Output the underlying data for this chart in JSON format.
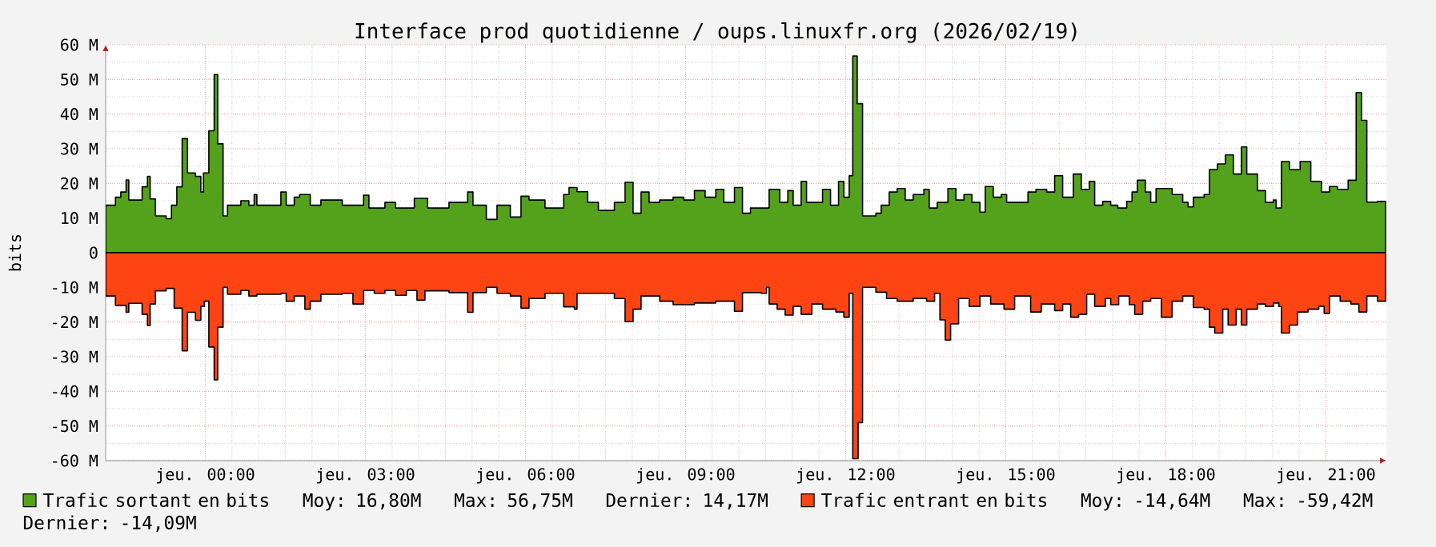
{
  "chart_data": {
    "type": "area",
    "title": "Interface prod quotidienne / oups.linuxfr.org (2026/02/19)",
    "ylabel": "bits",
    "xlim": [
      "2026-02-18T22:08",
      "2026-02-19T22:08"
    ],
    "ylim": [
      -60,
      60
    ],
    "xticks": [
      {
        "value": "2026-02-19T00:00",
        "label": "jeu. 00:00"
      },
      {
        "value": "2026-02-19T03:00",
        "label": "jeu. 03:00"
      },
      {
        "value": "2026-02-19T06:00",
        "label": "jeu. 06:00"
      },
      {
        "value": "2026-02-19T09:00",
        "label": "jeu. 09:00"
      },
      {
        "value": "2026-02-19T12:00",
        "label": "jeu. 12:00"
      },
      {
        "value": "2026-02-19T15:00",
        "label": "jeu. 15:00"
      },
      {
        "value": "2026-02-19T18:00",
        "label": "jeu. 18:00"
      },
      {
        "value": "2026-02-19T21:00",
        "label": "jeu. 21:00"
      }
    ],
    "yticks": [
      {
        "value": 60,
        "label": "60 M"
      },
      {
        "value": 50,
        "label": "50 M"
      },
      {
        "value": 40,
        "label": "40 M"
      },
      {
        "value": 30,
        "label": "30 M"
      },
      {
        "value": 20,
        "label": "20 M"
      },
      {
        "value": 10,
        "label": "10 M"
      },
      {
        "value": 0,
        "label": "0"
      },
      {
        "value": -10,
        "label": "-10 M"
      },
      {
        "value": -20,
        "label": "-20 M"
      },
      {
        "value": -30,
        "label": "-30 M"
      },
      {
        "value": -40,
        "label": "-40 M"
      },
      {
        "value": -50,
        "label": "-50 M"
      },
      {
        "value": -60,
        "label": "-60 M"
      }
    ],
    "grid": true,
    "legend": "bottom",
    "annotations": [
      "Moy: 16,80M",
      "Max: 56,75M",
      "Dernier: 14,17M",
      "Moy: -14,64M",
      "Max: -59,42M",
      "Dernier: -14,09M"
    ],
    "series": [
      {
        "name": "Trafic sortant en bits",
        "color": "#54a11c",
        "x": [
          "2026-02-18T22:08",
          "2026-02-18T22:19",
          "2026-02-18T22:25",
          "2026-02-18T22:31",
          "2026-02-18T22:34",
          "2026-02-18T22:49",
          "2026-02-18T22:55",
          "2026-02-18T22:58",
          "2026-02-18T23:04",
          "2026-02-18T23:16",
          "2026-02-18T23:22",
          "2026-02-18T23:28",
          "2026-02-18T23:34",
          "2026-02-18T23:40",
          "2026-02-18T23:49",
          "2026-02-18T23:55",
          "2026-02-18T23:58",
          "2026-02-19T00:04",
          "2026-02-19T00:10",
          "2026-02-19T00:14",
          "2026-02-19T00:20",
          "2026-02-19T00:25",
          "2026-02-19T00:40",
          "2026-02-19T00:49",
          "2026-02-19T00:55",
          "2026-02-19T00:58",
          "2026-02-19T01:25",
          "2026-02-19T01:31",
          "2026-02-19T01:40",
          "2026-02-19T01:46",
          "2026-02-19T01:58",
          "2026-02-19T02:10",
          "2026-02-19T02:22",
          "2026-02-19T02:34",
          "2026-02-19T02:58",
          "2026-02-19T03:04",
          "2026-02-19T03:22",
          "2026-02-19T03:34",
          "2026-02-19T03:55",
          "2026-02-19T04:10",
          "2026-02-19T04:34",
          "2026-02-19T04:55",
          "2026-02-19T05:01",
          "2026-02-19T05:16",
          "2026-02-19T05:28",
          "2026-02-19T05:43",
          "2026-02-19T05:55",
          "2026-02-19T06:04",
          "2026-02-19T06:22",
          "2026-02-19T06:43",
          "2026-02-19T06:49",
          "2026-02-19T06:58",
          "2026-02-19T07:10",
          "2026-02-19T07:22",
          "2026-02-19T07:40",
          "2026-02-19T07:52",
          "2026-02-19T08:01",
          "2026-02-19T08:10",
          "2026-02-19T08:19",
          "2026-02-19T08:31",
          "2026-02-19T08:46",
          "2026-02-19T08:58",
          "2026-02-19T09:10",
          "2026-02-19T09:22",
          "2026-02-19T09:34",
          "2026-02-19T09:43",
          "2026-02-19T09:55",
          "2026-02-19T10:04",
          "2026-02-19T10:13",
          "2026-02-19T10:34",
          "2026-02-19T10:46",
          "2026-02-19T10:55",
          "2026-02-19T11:01",
          "2026-02-19T11:10",
          "2026-02-19T11:16",
          "2026-02-19T11:34",
          "2026-02-19T11:43",
          "2026-02-19T11:52",
          "2026-02-19T11:58",
          "2026-02-19T12:04",
          "2026-02-19T12:08",
          "2026-02-19T12:13",
          "2026-02-19T12:19",
          "2026-02-19T12:34",
          "2026-02-19T12:40",
          "2026-02-19T12:49",
          "2026-02-19T12:58",
          "2026-02-19T13:07",
          "2026-02-19T13:16",
          "2026-02-19T13:28",
          "2026-02-19T13:34",
          "2026-02-19T13:43",
          "2026-02-19T13:55",
          "2026-02-19T14:04",
          "2026-02-19T14:13",
          "2026-02-19T14:22",
          "2026-02-19T14:31",
          "2026-02-19T14:37",
          "2026-02-19T14:46",
          "2026-02-19T14:55",
          "2026-02-19T15:01",
          "2026-02-19T15:13",
          "2026-02-19T15:25",
          "2026-02-19T15:34",
          "2026-02-19T15:46",
          "2026-02-19T15:55",
          "2026-02-19T16:04",
          "2026-02-19T16:16",
          "2026-02-19T16:25",
          "2026-02-19T16:34",
          "2026-02-19T16:40",
          "2026-02-19T16:49",
          "2026-02-19T16:58",
          "2026-02-19T17:06",
          "2026-02-19T17:16",
          "2026-02-19T17:22",
          "2026-02-19T17:28",
          "2026-02-19T17:37",
          "2026-02-19T17:43",
          "2026-02-19T17:49",
          "2026-02-19T18:01",
          "2026-02-19T18:07",
          "2026-02-19T18:19",
          "2026-02-19T18:25",
          "2026-02-19T18:31",
          "2026-02-19T18:43",
          "2026-02-19T18:49",
          "2026-02-19T18:58",
          "2026-02-19T19:07",
          "2026-02-19T19:16",
          "2026-02-19T19:25",
          "2026-02-19T19:31",
          "2026-02-19T19:43",
          "2026-02-19T19:52",
          "2026-02-19T20:01",
          "2026-02-19T20:04",
          "2026-02-19T20:10",
          "2026-02-19T20:19",
          "2026-02-19T20:31",
          "2026-02-19T20:43",
          "2026-02-19T20:55",
          "2026-02-19T21:04",
          "2026-02-19T21:13",
          "2026-02-19T21:25",
          "2026-02-19T21:34",
          "2026-02-19T21:40",
          "2026-02-19T21:46",
          "2026-02-19T21:58",
          "2026-02-19T22:07"
        ],
        "values": [
          13.7,
          16,
          17.5,
          21,
          15.2,
          19,
          22,
          15.5,
          10.6,
          9.8,
          13.7,
          19,
          32.9,
          23,
          22,
          17.5,
          23,
          35.2,
          51.4,
          31.4,
          10.6,
          13.7,
          15,
          13.7,
          16.8,
          13.7,
          17.5,
          13.7,
          16,
          16.8,
          13.7,
          15.2,
          15.2,
          13.7,
          16.6,
          12.9,
          14.5,
          12.9,
          15.7,
          12.9,
          14.5,
          17.5,
          13.7,
          9.6,
          13.7,
          10.3,
          16.3,
          15.2,
          12.9,
          16.8,
          18.8,
          17.6,
          14.5,
          12.2,
          14.5,
          20.3,
          11.4,
          17.5,
          14.5,
          15.2,
          16,
          15.2,
          17.9,
          16,
          18.3,
          14.5,
          18.8,
          11.4,
          12.9,
          18.3,
          14.5,
          17.9,
          13.7,
          20.6,
          14.5,
          18.3,
          13.7,
          20.6,
          16,
          22.2,
          56.75,
          43,
          10.6,
          11.4,
          13.7,
          17.5,
          18.5,
          15.2,
          16.8,
          18.3,
          12.9,
          14.5,
          18.5,
          15.2,
          16.8,
          14.5,
          11.7,
          19.1,
          16,
          16.8,
          14.5,
          14.5,
          17.5,
          18.3,
          17.5,
          22.2,
          16,
          22.7,
          18.3,
          20.6,
          13.7,
          14.8,
          13.7,
          12.9,
          14.8,
          17.5,
          20.9,
          17.5,
          14.5,
          18.5,
          18.5,
          16.8,
          14.5,
          13.2,
          16,
          16.8,
          24,
          25.6,
          28.2,
          22.7,
          30.5,
          22.7,
          17.9,
          14.5,
          15.2,
          12.9,
          26.3,
          24,
          26.3,
          20.6,
          17.5,
          19.1,
          18.3,
          20.9,
          46.2,
          38.2,
          14.6,
          14.8,
          14.17
        ]
      },
      {
        "name": "Trafic entrant en bits",
        "color": "#ff4414",
        "x": [
          "2026-02-18T22:08",
          "2026-02-18T22:19",
          "2026-02-18T22:31",
          "2026-02-18T22:34",
          "2026-02-18T22:49",
          "2026-02-18T22:55",
          "2026-02-18T22:58",
          "2026-02-18T23:04",
          "2026-02-18T23:16",
          "2026-02-18T23:25",
          "2026-02-18T23:34",
          "2026-02-18T23:40",
          "2026-02-18T23:49",
          "2026-02-18T23:55",
          "2026-02-18T23:59",
          "2026-02-19T00:04",
          "2026-02-19T00:10",
          "2026-02-19T00:14",
          "2026-02-19T00:20",
          "2026-02-19T00:25",
          "2026-02-19T00:40",
          "2026-02-19T00:49",
          "2026-02-19T00:58",
          "2026-02-19T01:25",
          "2026-02-19T01:31",
          "2026-02-19T01:40",
          "2026-02-19T01:52",
          "2026-02-19T01:58",
          "2026-02-19T02:10",
          "2026-02-19T02:34",
          "2026-02-19T02:46",
          "2026-02-19T02:58",
          "2026-02-19T03:10",
          "2026-02-19T03:22",
          "2026-02-19T03:34",
          "2026-02-19T03:46",
          "2026-02-19T03:58",
          "2026-02-19T04:07",
          "2026-02-19T04:34",
          "2026-02-19T04:55",
          "2026-02-19T05:01",
          "2026-02-19T05:16",
          "2026-02-19T05:28",
          "2026-02-19T05:43",
          "2026-02-19T05:55",
          "2026-02-19T06:04",
          "2026-02-19T06:22",
          "2026-02-19T06:43",
          "2026-02-19T06:55",
          "2026-02-19T06:58",
          "2026-02-19T07:22",
          "2026-02-19T07:40",
          "2026-02-19T07:52",
          "2026-02-19T08:01",
          "2026-02-19T08:10",
          "2026-02-19T08:31",
          "2026-02-19T08:46",
          "2026-02-19T09:10",
          "2026-02-19T09:34",
          "2026-02-19T09:55",
          "2026-02-19T10:04",
          "2026-02-19T10:25",
          "2026-02-19T10:31",
          "2026-02-19T10:34",
          "2026-02-19T10:43",
          "2026-02-19T10:52",
          "2026-02-19T11:01",
          "2026-02-19T11:10",
          "2026-02-19T11:22",
          "2026-02-19T11:34",
          "2026-02-19T11:49",
          "2026-02-19T11:58",
          "2026-02-19T12:04",
          "2026-02-19T12:08",
          "2026-02-19T12:14",
          "2026-02-19T12:19",
          "2026-02-19T12:34",
          "2026-02-19T12:46",
          "2026-02-19T12:58",
          "2026-02-19T13:16",
          "2026-02-19T13:31",
          "2026-02-19T13:40",
          "2026-02-19T13:46",
          "2026-02-19T13:52",
          "2026-02-19T13:58",
          "2026-02-19T14:07",
          "2026-02-19T14:19",
          "2026-02-19T14:31",
          "2026-02-19T14:43",
          "2026-02-19T14:58",
          "2026-02-19T15:10",
          "2026-02-19T15:28",
          "2026-02-19T15:40",
          "2026-02-19T15:55",
          "2026-02-19T16:04",
          "2026-02-19T16:13",
          "2026-02-19T16:22",
          "2026-02-19T16:31",
          "2026-02-19T16:40",
          "2026-02-19T16:52",
          "2026-02-19T16:58",
          "2026-02-19T17:07",
          "2026-02-19T17:19",
          "2026-02-19T17:25",
          "2026-02-19T17:34",
          "2026-02-19T17:43",
          "2026-02-19T17:55",
          "2026-02-19T18:07",
          "2026-02-19T18:19",
          "2026-02-19T18:31",
          "2026-02-19T18:43",
          "2026-02-19T18:49",
          "2026-02-19T18:55",
          "2026-02-19T19:04",
          "2026-02-19T19:10",
          "2026-02-19T19:19",
          "2026-02-19T19:25",
          "2026-02-19T19:31",
          "2026-02-19T19:43",
          "2026-02-19T19:52",
          "2026-02-19T20:01",
          "2026-02-19T20:07",
          "2026-02-19T20:10",
          "2026-02-19T20:19",
          "2026-02-19T20:28",
          "2026-02-19T20:40",
          "2026-02-19T20:52",
          "2026-02-19T20:58",
          "2026-02-19T21:04",
          "2026-02-19T21:16",
          "2026-02-19T21:28",
          "2026-02-19T21:37",
          "2026-02-19T21:46",
          "2026-02-19T21:58",
          "2026-02-19T22:07"
        ],
        "values": [
          -12.5,
          -15.2,
          -17.2,
          -14.6,
          -17.8,
          -21,
          -14.8,
          -11,
          -10.3,
          -16,
          -28.3,
          -17.2,
          -19.5,
          -15.5,
          -14,
          -27.2,
          -36.7,
          -21.5,
          -10,
          -12,
          -10.9,
          -12.5,
          -12,
          -11.7,
          -14,
          -12.5,
          -16.3,
          -14,
          -12,
          -11.7,
          -14.8,
          -10.9,
          -11.7,
          -10.9,
          -12.3,
          -10.9,
          -13.7,
          -11,
          -11.5,
          -17.2,
          -11.5,
          -10,
          -11.7,
          -12.5,
          -16,
          -13.2,
          -11.7,
          -15.6,
          -16.3,
          -11.7,
          -11.7,
          -13.2,
          -19.9,
          -16.3,
          -12.5,
          -14,
          -15,
          -14.5,
          -14,
          -16.9,
          -11.5,
          -11.7,
          -10,
          -14.8,
          -16.3,
          -18,
          -15.5,
          -17.8,
          -14.8,
          -16.3,
          -17.1,
          -18.6,
          -11.7,
          -59.42,
          -49,
          -10,
          -11.4,
          -13.2,
          -14,
          -13.2,
          -14,
          -11.7,
          -19.4,
          -25.2,
          -20.5,
          -13.2,
          -15.5,
          -12.5,
          -14.8,
          -16.3,
          -12.5,
          -17.1,
          -14.8,
          -16.7,
          -14.8,
          -18.6,
          -17.8,
          -12,
          -15.5,
          -13.2,
          -15,
          -12.5,
          -15,
          -17.8,
          -14,
          -13.2,
          -18.6,
          -14,
          -12.5,
          -15.8,
          -16.3,
          -21.5,
          -23.2,
          -16.3,
          -20.9,
          -16.3,
          -20.9,
          -16.3,
          -14.8,
          -15.5,
          -14.5,
          -15.5,
          -23.2,
          -20.9,
          -17.1,
          -16.3,
          -15.5,
          -17.5,
          -12.5,
          -14,
          -14.8,
          -17.1,
          -12.5,
          -14,
          -14.09
        ]
      }
    ]
  }
}
